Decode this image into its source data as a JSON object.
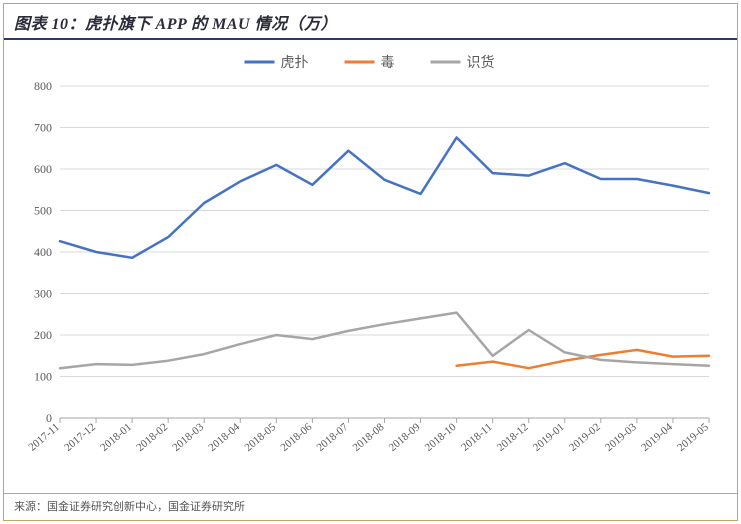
{
  "title_prefix": "图表 10：",
  "title_main": "虎扑旗下 APP 的 MAU 情况（万）",
  "source_label": "来源：",
  "source_value": "国金证券研究创新中心，国金证券研究所",
  "chart": {
    "type": "line",
    "background_color": "#ffffff",
    "grid_color": "#d9d9d9",
    "axis_color": "#a6a6a6",
    "label_color": "#595959",
    "ylim": [
      0,
      800
    ],
    "ytick_step": 100,
    "y_ticks": [
      0,
      100,
      200,
      300,
      400,
      500,
      600,
      700,
      800
    ],
    "x_labels": [
      "2017-11",
      "2017-12",
      "2018-01",
      "2018-02",
      "2018-03",
      "2018-04",
      "2018-05",
      "2018-06",
      "2018-07",
      "2018-08",
      "2018-09",
      "2018-10",
      "2018-11",
      "2018-12",
      "2019-01",
      "2019-02",
      "2019-03",
      "2019-04",
      "2019-05"
    ],
    "legend": {
      "position": "top-center",
      "items": [
        {
          "label": "虎扑",
          "color": "#4472c4"
        },
        {
          "label": "毒",
          "color": "#ed7d31"
        },
        {
          "label": "识货",
          "color": "#a6a6a6"
        }
      ]
    },
    "series": [
      {
        "name": "虎扑",
        "color": "#4472c4",
        "line_width": 2.5,
        "marker": "none",
        "values": [
          426,
          400,
          386,
          436,
          518,
          570,
          610,
          562,
          644,
          574,
          540,
          676,
          590,
          584,
          614,
          576,
          576,
          560,
          542
        ]
      },
      {
        "name": "毒",
        "color": "#ed7d31",
        "line_width": 2.5,
        "marker": "none",
        "values": [
          null,
          null,
          null,
          null,
          null,
          null,
          null,
          null,
          null,
          null,
          null,
          126,
          136,
          120,
          138,
          152,
          164,
          148,
          150
        ]
      },
      {
        "name": "识货",
        "color": "#a6a6a6",
        "line_width": 2.5,
        "marker": "none",
        "values": [
          120,
          130,
          128,
          138,
          154,
          178,
          200,
          190,
          210,
          226,
          240,
          254,
          150,
          212,
          158,
          140,
          134,
          130,
          126
        ]
      }
    ],
    "label_fontsize": 12,
    "title_fontsize": 16
  }
}
